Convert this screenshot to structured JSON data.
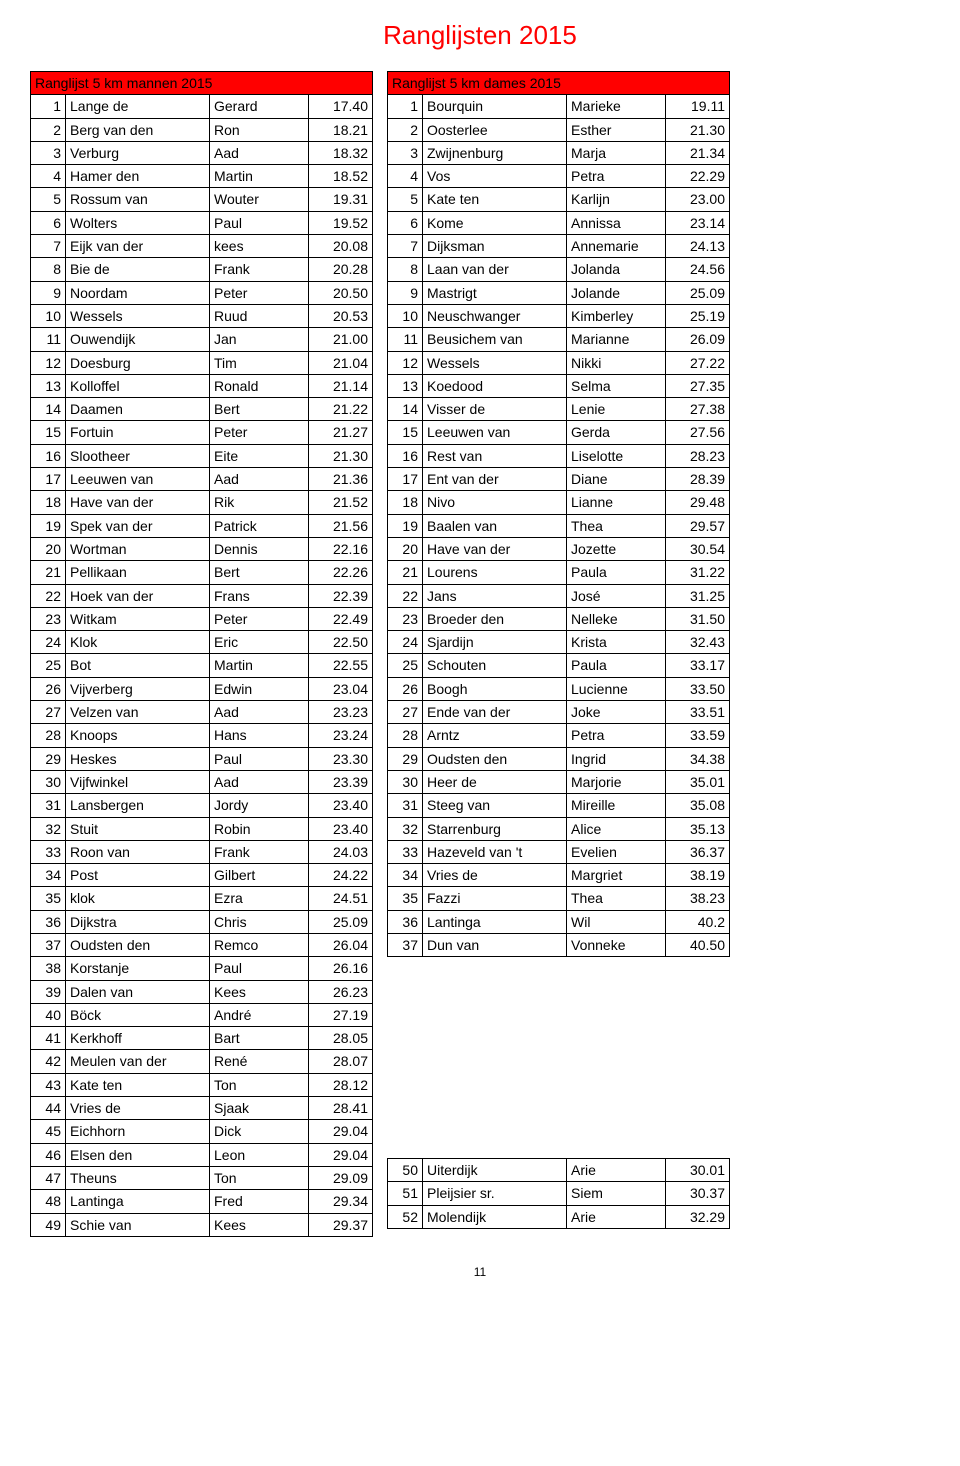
{
  "title": "Ranglijsten 2015",
  "page_number": "11",
  "left": {
    "header": "Ranglijst  5 km mannen  2015",
    "rows": [
      [
        "1",
        "Lange de",
        "Gerard",
        "17.40"
      ],
      [
        "2",
        "Berg van den",
        "Ron",
        "18.21"
      ],
      [
        "3",
        "Verburg",
        "Aad",
        "18.32"
      ],
      [
        "4",
        "Hamer  den",
        "Martin",
        "18.52"
      ],
      [
        "5",
        "Rossum van",
        "Wouter",
        "19.31"
      ],
      [
        "6",
        "Wolters",
        "Paul",
        "19.52"
      ],
      [
        "7",
        "Eijk van der",
        "kees",
        "20.08"
      ],
      [
        "8",
        "Bie de",
        "Frank",
        "20.28"
      ],
      [
        "9",
        "Noordam",
        "Peter",
        "20.50"
      ],
      [
        "10",
        "Wessels",
        "Ruud",
        "20.53"
      ],
      [
        "11",
        "Ouwendijk",
        "Jan",
        "21.00"
      ],
      [
        "12",
        "Doesburg",
        "Tim",
        "21.04"
      ],
      [
        "13",
        "Kolloffel",
        "Ronald",
        "21.14"
      ],
      [
        "14",
        "Daamen",
        "Bert",
        "21.22"
      ],
      [
        "15",
        "Fortuin",
        "Peter",
        "21.27"
      ],
      [
        "16",
        "Slootheer",
        "Eite",
        "21.30"
      ],
      [
        "17",
        "Leeuwen van",
        "Aad",
        "21.36"
      ],
      [
        "18",
        "Have  van der",
        "Rik",
        "21.52"
      ],
      [
        "19",
        "Spek  van der",
        "Patrick",
        "21.56"
      ],
      [
        "20",
        "Wortman",
        "Dennis",
        "22.16"
      ],
      [
        "21",
        "Pellikaan",
        "Bert",
        "22.26"
      ],
      [
        "22",
        "Hoek van der",
        "Frans",
        "22.39"
      ],
      [
        "23",
        "Witkam",
        "Peter",
        "22.49"
      ],
      [
        "24",
        "Klok",
        "Eric",
        "22.50"
      ],
      [
        "25",
        "Bot",
        "Martin",
        "22.55"
      ],
      [
        "26",
        "Vijverberg",
        "Edwin",
        "23.04"
      ],
      [
        "27",
        "Velzen van",
        "Aad",
        "23.23"
      ],
      [
        "28",
        "Knoops",
        "Hans",
        "23.24"
      ],
      [
        "29",
        "Heskes",
        "Paul",
        "23.30"
      ],
      [
        "30",
        "Vijfwinkel",
        "Aad",
        "23.39"
      ],
      [
        "31",
        "Lansbergen",
        "Jordy",
        "23.40"
      ],
      [
        "32",
        "Stuit",
        "Robin",
        "23.40"
      ],
      [
        "33",
        "Roon  van",
        "Frank",
        "24.03"
      ],
      [
        "34",
        "Post",
        "Gilbert",
        "24.22"
      ],
      [
        "35",
        "klok",
        "Ezra",
        "24.51"
      ],
      [
        "36",
        "Dijkstra",
        "Chris",
        "25.09"
      ],
      [
        "37",
        "Oudsten den",
        "Remco",
        "26.04"
      ],
      [
        "38",
        "Korstanje",
        "Paul",
        "26.16"
      ],
      [
        "39",
        "Dalen  van",
        "Kees",
        "26.23"
      ],
      [
        "40",
        "Böck",
        "André",
        "27.19"
      ],
      [
        "41",
        "Kerkhoff",
        "Bart",
        "28.05"
      ],
      [
        "42",
        "Meulen van der",
        "René",
        "28.07"
      ],
      [
        "43",
        "Kate ten",
        "Ton",
        "28.12"
      ],
      [
        "44",
        "Vries de",
        "Sjaak",
        "28.41"
      ],
      [
        "45",
        "Eichhorn",
        "Dick",
        "29.04"
      ],
      [
        "46",
        "Elsen den",
        "Leon",
        "29.04"
      ],
      [
        "47",
        "Theuns",
        "Ton",
        "29.09"
      ],
      [
        "48",
        "Lantinga",
        "Fred",
        "29.34"
      ],
      [
        "49",
        "Schie  van",
        "Kees",
        "29.37"
      ]
    ]
  },
  "right": {
    "header": "Ranglijst  5 km dames  2015",
    "rows": [
      [
        "1",
        "Bourquin",
        "Marieke",
        "19.11"
      ],
      [
        "2",
        "Oosterlee",
        "Esther",
        "21.30"
      ],
      [
        "3",
        "Zwijnenburg",
        "Marja",
        "21.34"
      ],
      [
        "4",
        "Vos",
        "Petra",
        "22.29"
      ],
      [
        "5",
        "Kate ten",
        "Karlijn",
        "23.00"
      ],
      [
        "6",
        "Kome",
        "Annissa",
        "23.14"
      ],
      [
        "7",
        "Dijksman",
        "Annemarie",
        "24.13"
      ],
      [
        "8",
        "Laan  van der",
        "Jolanda",
        "24.56"
      ],
      [
        "9",
        "Mastrigt",
        "Jolande",
        "25.09"
      ],
      [
        "10",
        "Neuschwanger",
        "Kimberley",
        "25.19"
      ],
      [
        "11",
        "Beusichem van",
        "Marianne",
        "26.09"
      ],
      [
        "12",
        "Wessels",
        "Nikki",
        "27.22"
      ],
      [
        "13",
        "Koedood",
        "Selma",
        "27.35"
      ],
      [
        "14",
        "Visser de",
        "Lenie",
        "27.38"
      ],
      [
        "15",
        "Leeuwen van",
        "Gerda",
        "27.56"
      ],
      [
        "16",
        "Rest van",
        "Liselotte",
        "28.23"
      ],
      [
        "17",
        "Ent  van der",
        "Diane",
        "28.39"
      ],
      [
        "18",
        "Nivo",
        "Lianne",
        "29.48"
      ],
      [
        "19",
        "Baalen van",
        "Thea",
        "29.57"
      ],
      [
        "20",
        "Have  van der",
        "Jozette",
        "30.54"
      ],
      [
        "21",
        "Lourens",
        "Paula",
        "31.22"
      ],
      [
        "22",
        "Jans",
        "José",
        "31.25"
      ],
      [
        "23",
        "Broeder  den",
        "Nelleke",
        "31.50"
      ],
      [
        "24",
        "Sjardijn",
        "Krista",
        "32.43"
      ],
      [
        "25",
        "Schouten",
        "Paula",
        "33.17"
      ],
      [
        "26",
        "Boogh",
        "Lucienne",
        "33.50"
      ],
      [
        "27",
        "Ende van der",
        "Joke",
        "33.51"
      ],
      [
        "28",
        "Arntz",
        "Petra",
        "33.59"
      ],
      [
        "29",
        "Oudsten den",
        "Ingrid",
        "34.38"
      ],
      [
        "30",
        "Heer de",
        "Marjorie",
        "35.01"
      ],
      [
        "31",
        "Steeg van",
        "Mireille",
        "35.08"
      ],
      [
        "32",
        "Starrenburg",
        "Alice",
        "35.13"
      ],
      [
        "33",
        "Hazeveld van 't",
        "Evelien",
        "36.37"
      ],
      [
        "34",
        "Vries de",
        "Margriet",
        "38.19"
      ],
      [
        "35",
        "Fazzi",
        "Thea",
        "38.23"
      ],
      [
        "36",
        "Lantinga",
        "Wil",
        "40.2"
      ],
      [
        "37",
        "Dun van",
        "Vonneke",
        "40.50"
      ]
    ],
    "extra_rows": [
      [
        "50",
        "Uiterdijk",
        "Arie",
        "30.01"
      ],
      [
        "51",
        "Pleijsier  sr.",
        "Siem",
        "30.37"
      ],
      [
        "52",
        "Molendijk",
        "Arie",
        "32.29"
      ]
    ]
  },
  "style": {
    "header_bg": "#ff0000",
    "title_color": "#ff0000",
    "border_color": "#000000",
    "background": "#ffffff",
    "font": "Verdana",
    "title_fontsize": 26,
    "body_fontsize": 14
  }
}
